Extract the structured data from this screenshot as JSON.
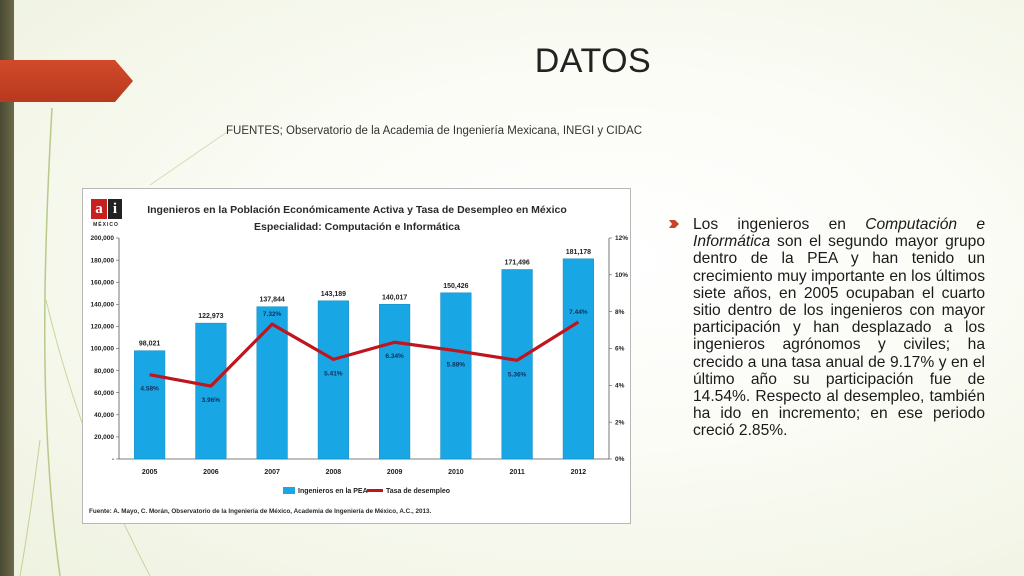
{
  "slide": {
    "title": "DATOS",
    "sources": "FUENTES; Observatorio de la Academia de Ingeniería Mexicana, INEGI y CIDAC"
  },
  "logo": {
    "letter_a": "a",
    "letter_j": "i",
    "subtitle": "MÉXICO"
  },
  "bullet": {
    "text_before": "Los ingenieros en ",
    "text_italic": "Computación e Informática",
    "text_after": " son el segundo mayor grupo dentro de la PEA y han tenido un crecimiento muy importante en los últimos siete años, en 2005 ocupaban el cuarto sitio dentro de los ingenieros con mayor participación y han desplazado a los ingenieros agrónomos y civiles; ha crecido a una tasa anual de 9.17% y en el último año su participación fue de 14.54%. Respecto al desempleo, también ha ido en incremento; en ese periodo creció 2.85%."
  },
  "colors": {
    "accent": "#c8442a",
    "bar": "#19a6e4",
    "line": "#c0151c",
    "band": "#5a5840"
  },
  "chart_data": {
    "type": "bar",
    "title": "Ingenieros en la Población Económicamente Activa y Tasa de Desempleo en México",
    "subtitle": "Especialidad: Computación e Informática",
    "categories": [
      "2005",
      "2006",
      "2007",
      "2008",
      "2009",
      "2010",
      "2011",
      "2012"
    ],
    "series": [
      {
        "name": "Ingenieros en la PEA",
        "type": "bar",
        "axis": "left",
        "values": [
          98021,
          122973,
          137844,
          143189,
          140017,
          150426,
          171496,
          181178
        ],
        "labels": [
          "98,021",
          "122,973",
          "137,844",
          "143,189",
          "140,017",
          "150,426",
          "171,496",
          "181,178"
        ]
      },
      {
        "name": "Tasa de desempleo",
        "type": "line",
        "axis": "right",
        "values": [
          4.58,
          3.96,
          7.32,
          5.41,
          6.34,
          5.88,
          5.36,
          7.44
        ],
        "labels": [
          "4.58%",
          "3.96%",
          "7.32%",
          "5.41%",
          "6.34%",
          "5.88%",
          "5.36%",
          "7.44%"
        ]
      }
    ],
    "y_left": {
      "ylim": [
        0,
        200000
      ],
      "ticks": [
        0,
        20000,
        40000,
        60000,
        80000,
        100000,
        120000,
        140000,
        160000,
        180000,
        200000
      ],
      "tick_labels": [
        "-",
        "20,000",
        "40,000",
        "60,000",
        "80,000",
        "100,000",
        "120,000",
        "140,000",
        "160,000",
        "180,000",
        "200,000"
      ]
    },
    "y_right": {
      "ylim": [
        0,
        12
      ],
      "ticks": [
        0,
        2,
        4,
        6,
        8,
        10,
        12
      ],
      "tick_labels": [
        "0%",
        "2%",
        "4%",
        "6%",
        "8%",
        "10%",
        "12%"
      ]
    },
    "grid": false,
    "legend": "bottom",
    "footnote": "Fuente: A. Mayo, C. Morán, Observatorio de la Ingeniería de México, Academia de Ingeniería de México, A.C., 2013."
  }
}
